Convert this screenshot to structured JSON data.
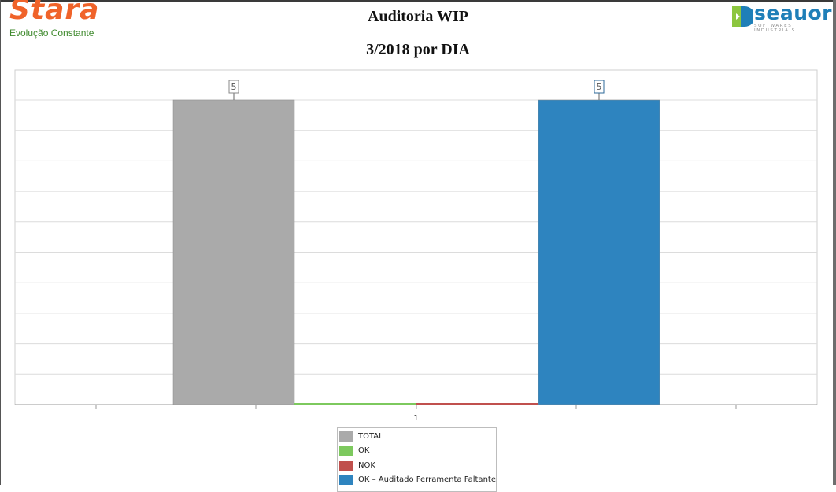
{
  "header": {
    "brand_left": {
      "name": "Stara",
      "tagline": "Evolução Constante",
      "color": "#f0632a",
      "tagline_color": "#3f8a2e"
    },
    "brand_right": {
      "name": "seauor",
      "subtitle": "SOFTWARES INDUSTRIAIS",
      "color": "#1f7fb8"
    },
    "title_line1": "Auditoria WIP",
    "title_line2": "3/2018 por DIA"
  },
  "chart_data": {
    "type": "bar",
    "categories": [
      "1"
    ],
    "series": [
      {
        "name": "TOTAL",
        "values": [
          5
        ],
        "color": "#aaaaaa",
        "data_label": "5"
      },
      {
        "name": "OK",
        "values": [
          0
        ],
        "color": "#7dc95e",
        "data_label": ""
      },
      {
        "name": "NOK",
        "values": [
          0
        ],
        "color": "#c0504d",
        "data_label": ""
      },
      {
        "name": "OK – Auditado Ferramenta Faltante",
        "values": [
          5
        ],
        "color": "#2e84bf",
        "data_label": "5"
      }
    ],
    "ylim": [
      0,
      5
    ],
    "grid": true,
    "legend_position": "bottom"
  }
}
